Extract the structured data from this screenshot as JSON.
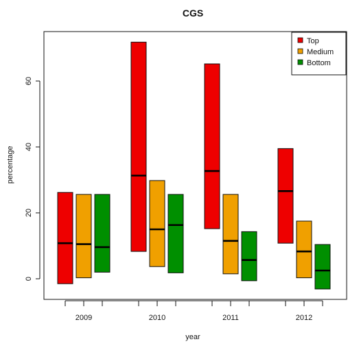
{
  "chart_data": {
    "type": "bar",
    "title": "CGS",
    "xlabel": "year",
    "ylabel": "percentage",
    "categories": [
      "2009",
      "2010",
      "2011",
      "2012"
    ],
    "ylim": [
      -6,
      77
    ],
    "yticks": [
      0,
      20,
      40,
      60
    ],
    "grid": false,
    "legend_position": "top-right",
    "series": [
      {
        "name": "Top",
        "color": "#ee0000",
        "ranges": [
          [
            -1.5,
            26.2
          ],
          [
            8.3,
            71.8
          ],
          [
            15.2,
            65.2
          ],
          [
            10.8,
            39.5
          ]
        ],
        "medians": [
          10.8,
          31.3,
          32.7,
          26.6
        ]
      },
      {
        "name": "Medium",
        "color": "#f0a000",
        "ranges": [
          [
            0.3,
            25.6
          ],
          [
            3.7,
            29.8
          ],
          [
            1.5,
            25.6
          ],
          [
            0.3,
            17.5
          ]
        ],
        "medians": [
          10.5,
          15.0,
          11.5,
          8.3
        ]
      },
      {
        "name": "Bottom",
        "color": "#008f00",
        "ranges": [
          [
            2.0,
            25.6
          ],
          [
            1.8,
            25.6
          ],
          [
            -0.6,
            14.3
          ],
          [
            -3.1,
            10.4
          ]
        ],
        "medians": [
          9.6,
          16.3,
          5.7,
          2.5
        ]
      }
    ]
  }
}
